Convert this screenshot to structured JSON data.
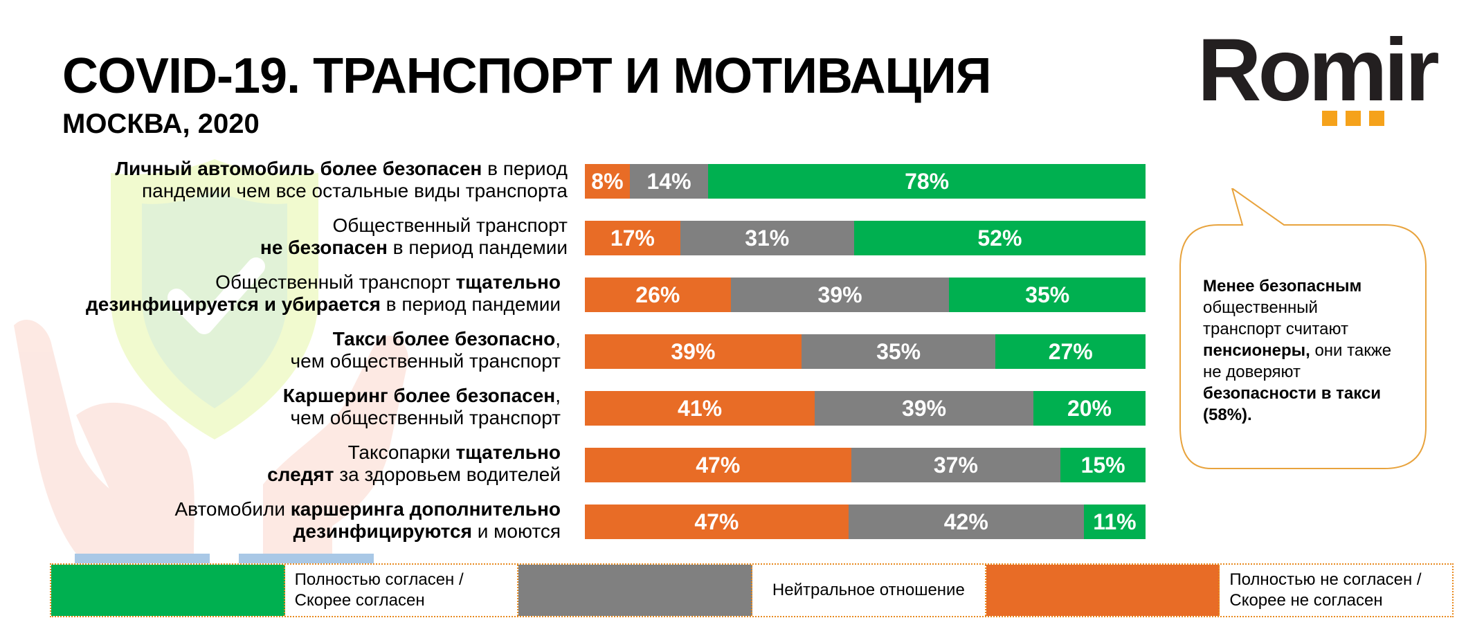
{
  "header": {
    "title": "COVID-19. ТРАНСПОРТ И МОТИВАЦИЯ",
    "subtitle": "МОСКВА, 2020"
  },
  "logo": {
    "text": "Romir"
  },
  "colors": {
    "agree": "#00b050",
    "neutral": "#808080",
    "disagree": "#e86c26"
  },
  "chart_data": {
    "type": "bar",
    "orientation": "horizontal",
    "stacked": true,
    "percent_total": true,
    "categories": [
      "Личный автомобиль более безопасен в период пандемии чем все остальные виды транспорта",
      "Общественный транспорт не безопасен в период пандемии",
      "Общественный транспорт тщательно дезинфицируется и убирается в период пандемии",
      "Такси более безопасно, чем общественный транспорт",
      "Каршеринг более безопасен, чем общественный транспорт",
      "Таксопарки тщательно следят за здоровьем водителей",
      "Автомобили каршеринга дополнительно дезинфицируются и моются"
    ],
    "label_parts": [
      [
        {
          "t": "Личный автомобиль более безопасен",
          "b": true
        },
        {
          "t": " в период",
          "b": false
        },
        {
          "br": true
        },
        {
          "t": "пандемии чем все остальные виды транспорта",
          "b": false
        }
      ],
      [
        {
          "t": "Общественный транспорт",
          "b": false
        },
        {
          "br": true
        },
        {
          "t": "не безопасен",
          "b": true
        },
        {
          "t": " в период пандемии",
          "b": false
        }
      ],
      [
        {
          "t": "Общественный транспорт ",
          "b": false
        },
        {
          "t": "тщательно",
          "b": true
        },
        {
          "br": true
        },
        {
          "t": "дезинфицируется и убирается",
          "b": true
        },
        {
          "t": " в период пандемии",
          "b": false
        }
      ],
      [
        {
          "t": "Такси более безопасно",
          "b": true
        },
        {
          "t": ",",
          "b": false
        },
        {
          "br": true
        },
        {
          "t": "чем общественный транспорт",
          "b": false
        }
      ],
      [
        {
          "t": "Каршеринг более безопасен",
          "b": true
        },
        {
          "t": ",",
          "b": false
        },
        {
          "br": true
        },
        {
          "t": "чем общественный транспорт",
          "b": false
        }
      ],
      [
        {
          "t": "Таксопарки ",
          "b": false
        },
        {
          "t": "тщательно",
          "b": true
        },
        {
          "br": true
        },
        {
          "t": "следят",
          "b": true
        },
        {
          "t": " за здоровьем водителей",
          "b": false
        }
      ],
      [
        {
          "t": "Автомобили ",
          "b": false
        },
        {
          "t": "каршеринга дополнительно",
          "b": true
        },
        {
          "br": true
        },
        {
          "t": "дезинфицируются",
          "b": true
        },
        {
          "t": " и моются",
          "b": false
        }
      ]
    ],
    "series": [
      {
        "name": "Полностью не согласен / Скорее не согласен",
        "key": "disagree",
        "values": [
          8,
          17,
          26,
          39,
          41,
          47,
          47
        ]
      },
      {
        "name": "Нейтральное отношение",
        "key": "neutral",
        "values": [
          14,
          31,
          39,
          35,
          39,
          37,
          42
        ]
      },
      {
        "name": "Полностью согласен / Скорее согласен",
        "key": "agree",
        "values": [
          78,
          52,
          35,
          27,
          20,
          15,
          11
        ]
      }
    ],
    "value_suffix": "%"
  },
  "callout": {
    "parts": [
      {
        "t": "Менее безопасным",
        "b": true
      },
      {
        "br": true
      },
      {
        "t": "общественный",
        "b": false
      },
      {
        "br": true
      },
      {
        "t": "транспорт считают",
        "b": false
      },
      {
        "br": true
      },
      {
        "t": "пенсионеры,",
        "b": true
      },
      {
        "t": " они также",
        "b": false
      },
      {
        "br": true
      },
      {
        "t": "не доверяют",
        "b": false
      },
      {
        "br": true
      },
      {
        "t": "безопасности в такси",
        "b": true
      },
      {
        "br": true
      },
      {
        "t": "(58%).",
        "b": true
      }
    ]
  },
  "legend": [
    {
      "key": "agree",
      "label": "Полностью согласен / Скорее согласен",
      "lines": [
        "Полностью согласен /",
        "Скорее согласен"
      ]
    },
    {
      "key": "neutral",
      "label": "Нейтральное отношение",
      "lines": [
        "Нейтральное отношение"
      ]
    },
    {
      "key": "disagree",
      "label": "Полностью не согласен / Скорее не согласен",
      "lines": [
        "Полностью не согласен /",
        "Скорее не согласен"
      ]
    }
  ]
}
